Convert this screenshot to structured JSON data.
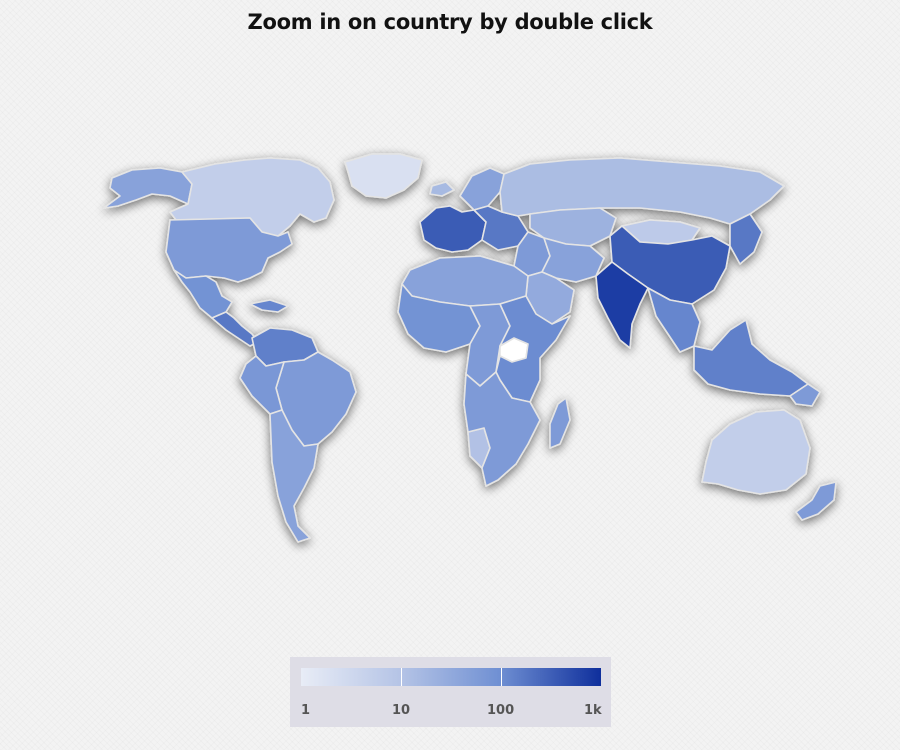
{
  "title": "Zoom in on country by double click",
  "legend": {
    "labels": [
      "1",
      "10",
      "100",
      "1k"
    ],
    "colors": {
      "min": "#e8ecf6",
      "low": "#b5c4e6",
      "mid": "#7090d3",
      "max": "#0f2f9c"
    }
  },
  "map": {
    "projection": "miller",
    "color_scale": "logarithmic",
    "no_data_color": "#ffffff",
    "interaction": "double-click-to-zoom",
    "regions": [
      {
        "id": "greenland",
        "level": 0.1
      },
      {
        "id": "canada",
        "level": 0.25
      },
      {
        "id": "alaska",
        "level": 0.55
      },
      {
        "id": "usa",
        "level": 0.6
      },
      {
        "id": "mexico",
        "level": 0.65
      },
      {
        "id": "central-america",
        "level": 0.75
      },
      {
        "id": "caribbean",
        "level": 0.7
      },
      {
        "id": "colombia-venezuela",
        "level": 0.72
      },
      {
        "id": "brazil",
        "level": 0.6
      },
      {
        "id": "peru-bolivia",
        "level": 0.62
      },
      {
        "id": "southern-cone",
        "level": 0.55
      },
      {
        "id": "iceland",
        "level": 0.4
      },
      {
        "id": "scandinavia",
        "level": 0.55
      },
      {
        "id": "western-europe",
        "level": 0.85
      },
      {
        "id": "eastern-europe",
        "level": 0.75
      },
      {
        "id": "russia",
        "level": 0.38
      },
      {
        "id": "kazakhstan-central-asia",
        "level": 0.45
      },
      {
        "id": "middle-east",
        "level": 0.6
      },
      {
        "id": "arabia",
        "level": 0.5
      },
      {
        "id": "iran-afghanistan",
        "level": 0.55
      },
      {
        "id": "india",
        "level": 0.95
      },
      {
        "id": "china",
        "level": 0.85
      },
      {
        "id": "mongolia",
        "level": 0.28
      },
      {
        "id": "japan-korea",
        "level": 0.75
      },
      {
        "id": "southeast-asia",
        "level": 0.7
      },
      {
        "id": "indonesia-philippines",
        "level": 0.72
      },
      {
        "id": "north-africa",
        "level": 0.55
      },
      {
        "id": "west-africa",
        "level": 0.65
      },
      {
        "id": "central-africa",
        "level": 0.6
      },
      {
        "id": "east-africa",
        "level": 0.68
      },
      {
        "id": "south-sudan",
        "level": -1
      },
      {
        "id": "southern-africa",
        "level": 0.6
      },
      {
        "id": "namibia",
        "level": 0.35
      },
      {
        "id": "madagascar",
        "level": 0.6
      },
      {
        "id": "australia",
        "level": 0.25
      },
      {
        "id": "new-zealand",
        "level": 0.6
      },
      {
        "id": "papua",
        "level": 0.6
      }
    ]
  }
}
